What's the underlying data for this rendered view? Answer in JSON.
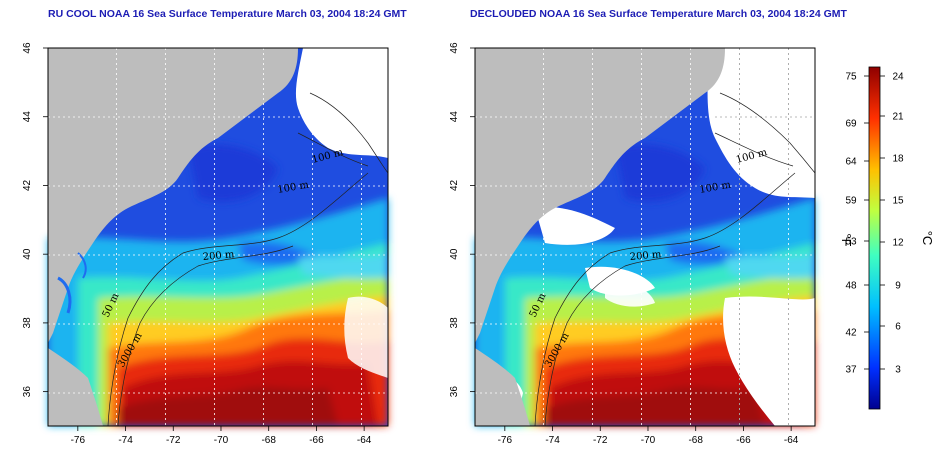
{
  "panels": [
    {
      "title": "RU COOL NOAA 16 Sea Surface Temperature March 03, 2004 18:24 GMT",
      "contour_labels": [
        "100 m",
        "100 m",
        "3000 m",
        "200 m",
        "50 m"
      ]
    },
    {
      "title": "DECLOUDED NOAA 16 Sea Surface Temperature March 03, 2004 18:24 GMT",
      "contour_labels": [
        "100 m",
        "100 m",
        "3000 m",
        "200 m",
        "50 m"
      ]
    }
  ],
  "axes": {
    "lon_ticks": [
      "-76",
      "-74",
      "-72",
      "-70",
      "-68",
      "-66",
      "-64"
    ],
    "lat_ticks": [
      "36",
      "38",
      "40",
      "42",
      "44",
      "46"
    ]
  },
  "colorbar": {
    "fahrenheit_ticks": [
      "75",
      "69",
      "64",
      "59",
      "53",
      "48",
      "42",
      "37"
    ],
    "celsius_ticks": [
      "24",
      "21",
      "18",
      "15",
      "12",
      "9",
      "6",
      "3"
    ],
    "fahrenheit_label": "°F",
    "celsius_label": "°C",
    "colors": [
      "#00008f",
      "#0040ff",
      "#00bfff",
      "#40ffbf",
      "#bfff40",
      "#ffbf00",
      "#ff4000",
      "#8f0000"
    ]
  },
  "colors": {
    "land": "#bdbdbd",
    "no_data": "#ffffff",
    "title": "#1c1cb4"
  }
}
